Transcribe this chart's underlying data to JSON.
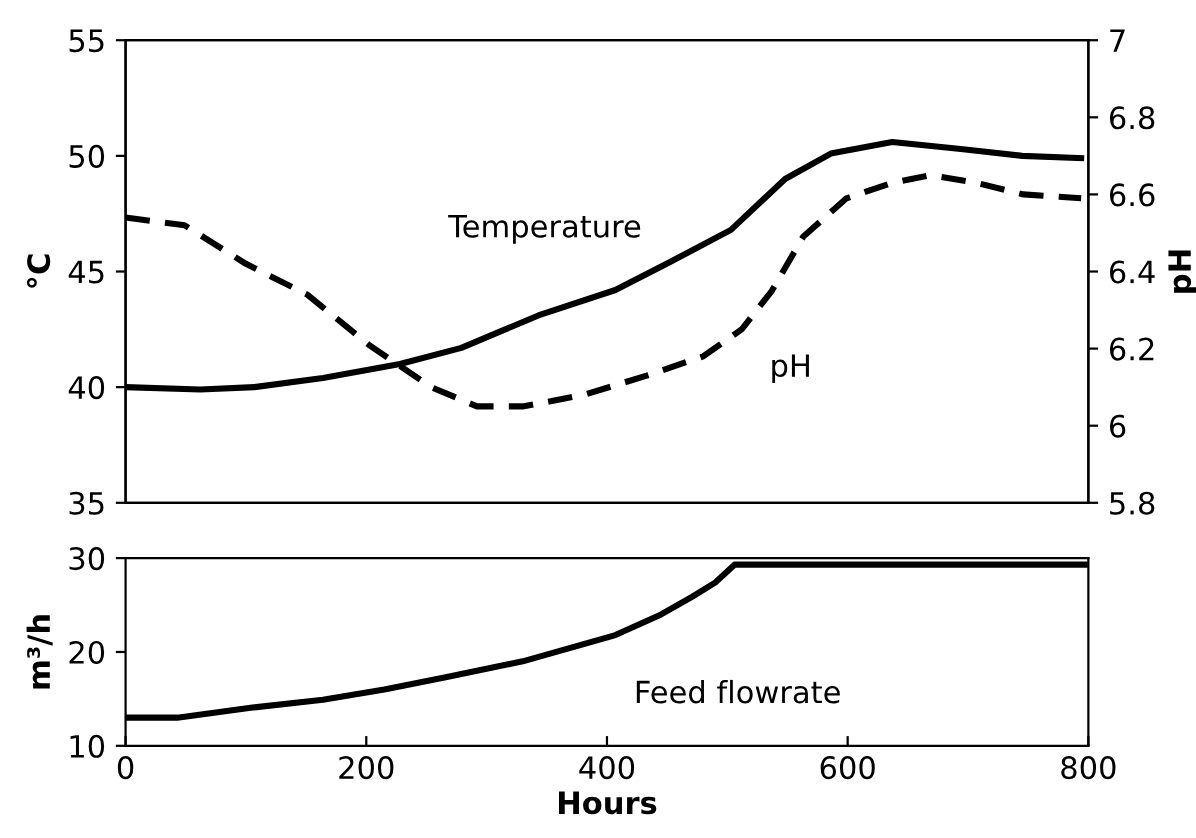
{
  "chart_data": [
    {
      "type": "line",
      "ylabel": "°C",
      "y2label": "pH",
      "xlim": [
        0,
        800
      ],
      "ylim": [
        35,
        55
      ],
      "yticks": [
        35,
        40,
        45,
        50,
        55
      ],
      "y2lim": [
        5.8,
        7
      ],
      "y2ticks": [
        5.8,
        6,
        6.2,
        6.4,
        6.6,
        6.8,
        7
      ],
      "tick_labels": "y",
      "legend": false,
      "grid": false,
      "series": [
        {
          "name": "Temperature",
          "color": "#000000",
          "line_style": "solid",
          "x": [
            0,
            62,
            107,
            164,
            228,
            279,
            343,
            407,
            452,
            503,
            548,
            586,
            637,
            694,
            745,
            794
          ],
          "values": [
            40.0,
            39.9,
            40.0,
            40.4,
            41.0,
            41.7,
            43.1,
            44.2,
            45.4,
            46.8,
            49.0,
            50.1,
            50.6,
            50.3,
            50.0,
            49.9
          ]
        },
        {
          "name": "pH",
          "color": "#000000",
          "line_style": "dashed",
          "axis": "y2",
          "x": [
            0,
            49,
            100,
            151,
            202,
            254,
            292,
            330,
            381,
            433,
            480,
            512,
            537,
            563,
            599,
            637,
            669,
            707,
            746,
            794
          ],
          "values": [
            6.54,
            6.52,
            6.42,
            6.34,
            6.21,
            6.1,
            6.05,
            6.05,
            6.08,
            6.13,
            6.18,
            6.25,
            6.35,
            6.49,
            6.59,
            6.63,
            6.65,
            6.63,
            6.6,
            6.59
          ]
        }
      ]
    },
    {
      "type": "line",
      "ylabel": "m³/h",
      "xlabel": "Hours",
      "xlim": [
        0,
        800
      ],
      "xticks": [
        0,
        200,
        400,
        600,
        800
      ],
      "ylim": [
        10,
        30
      ],
      "yticks": [
        10,
        20,
        30
      ],
      "legend": false,
      "grid": false,
      "series": [
        {
          "name": "Feed flowrate",
          "color": "#000000",
          "line_style": "solid",
          "x": [
            0,
            43,
            107,
            164,
            215,
            266,
            330,
            407,
            445,
            471,
            490,
            506,
            797
          ],
          "values": [
            13.0,
            13.0,
            14.1,
            14.9,
            16.0,
            17.3,
            19.0,
            21.8,
            24.0,
            25.9,
            27.4,
            29.3,
            29.3
          ]
        }
      ]
    }
  ]
}
